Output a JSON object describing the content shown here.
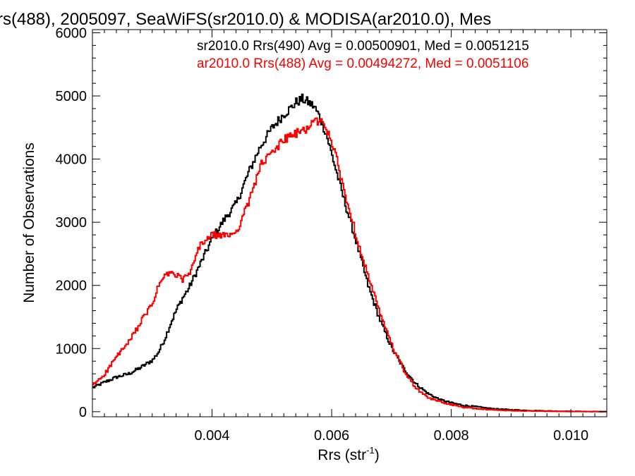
{
  "chart_data": {
    "type": "line",
    "title": "rs(488), 2005097, SeaWiFS(sr2010.0) & MODISA(ar2010.0), Mes",
    "xlabel": "Rrs (str",
    "xlabel_sup": "-1",
    "xlabel_close": ")",
    "ylabel": "Number of Observations",
    "xlim": [
      0.002,
      0.0106
    ],
    "ylim": [
      -80,
      6050
    ],
    "xticks": [
      {
        "value": 0.004,
        "label": "0.004"
      },
      {
        "value": 0.006,
        "label": "0.006"
      },
      {
        "value": 0.008,
        "label": "0.008"
      },
      {
        "value": 0.01,
        "label": "0.010"
      }
    ],
    "yticks": [
      {
        "value": 0,
        "label": "0"
      },
      {
        "value": 1000,
        "label": "1000"
      },
      {
        "value": 2000,
        "label": "2000"
      },
      {
        "value": 3000,
        "label": "3000"
      },
      {
        "value": 4000,
        "label": "4000"
      },
      {
        "value": 5000,
        "label": "5000"
      },
      {
        "value": 6000,
        "label": "6000"
      }
    ],
    "legend_placement": "top-right",
    "grid": false,
    "series": [
      {
        "name": "sr2010.0 Rrs(490) Avg = 0.00500901, Med = 0.0051215",
        "color": "#000000",
        "x": [
          0.002,
          0.0022,
          0.0024,
          0.0026,
          0.0028,
          0.003,
          0.0031,
          0.0032,
          0.0033,
          0.0034,
          0.0035,
          0.0036,
          0.0038,
          0.004,
          0.0042,
          0.0044,
          0.0046,
          0.0048,
          0.005,
          0.0052,
          0.0053,
          0.0054,
          0.0055,
          0.0056,
          0.0057,
          0.0058,
          0.0059,
          0.006,
          0.0061,
          0.0062,
          0.0064,
          0.0066,
          0.0068,
          0.007,
          0.0072,
          0.0074,
          0.0076,
          0.0078,
          0.008,
          0.0082,
          0.0084,
          0.0086,
          0.0088,
          0.009,
          0.0092,
          0.0094,
          0.0096,
          0.0098,
          0.01,
          0.0102,
          0.0104,
          0.0106
        ],
        "y": [
          380,
          470,
          550,
          600,
          700,
          820,
          950,
          1150,
          1400,
          1620,
          1800,
          1950,
          2350,
          2750,
          3050,
          3300,
          3780,
          4200,
          4500,
          4720,
          4800,
          4900,
          4950,
          4900,
          4830,
          4650,
          4400,
          4050,
          3700,
          3350,
          2700,
          2000,
          1450,
          1000,
          680,
          440,
          290,
          190,
          140,
          100,
          80,
          55,
          40,
          30,
          22,
          16,
          12,
          8,
          6,
          4,
          3,
          2
        ]
      },
      {
        "name": "ar2010.0 Rrs(488) Avg = 0.00494272, Med = 0.0051106",
        "color": "#ff0000",
        "x": [
          0.002,
          0.0022,
          0.0024,
          0.0026,
          0.0028,
          0.003,
          0.0031,
          0.0032,
          0.0033,
          0.0034,
          0.0035,
          0.0036,
          0.0038,
          0.004,
          0.0042,
          0.0044,
          0.0046,
          0.0048,
          0.005,
          0.0052,
          0.0053,
          0.0054,
          0.0055,
          0.0056,
          0.0057,
          0.0058,
          0.0059,
          0.006,
          0.0061,
          0.0062,
          0.0064,
          0.0066,
          0.0068,
          0.007,
          0.0072,
          0.0074,
          0.0076,
          0.0078,
          0.008,
          0.0082,
          0.0084,
          0.0086,
          0.0088,
          0.009,
          0.0092,
          0.0094,
          0.0096,
          0.0098,
          0.01,
          0.0102,
          0.0104,
          0.0106
        ],
        "y": [
          420,
          600,
          880,
          1100,
          1420,
          1720,
          2000,
          2150,
          2200,
          2150,
          2100,
          2150,
          2650,
          2800,
          2780,
          2850,
          3300,
          3900,
          4100,
          4320,
          4350,
          4400,
          4450,
          4500,
          4600,
          4600,
          4500,
          4250,
          3900,
          3500,
          2800,
          2150,
          1550,
          1050,
          650,
          370,
          220,
          160,
          110,
          70,
          50,
          35,
          25,
          18,
          13,
          10,
          7,
          5,
          4,
          3,
          2,
          1
        ]
      }
    ]
  }
}
